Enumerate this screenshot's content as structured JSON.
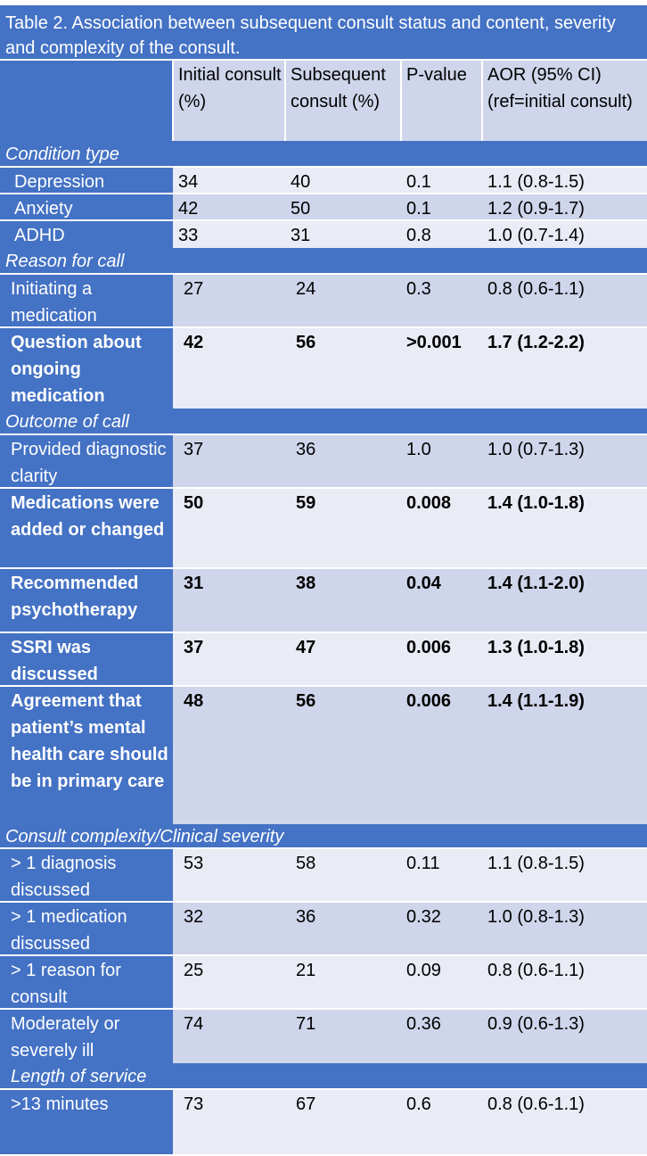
{
  "title": "Table 2.  Association between subsequent consult status and content, severity and complexity of the consult.",
  "header": {
    "c0": "",
    "c1": "Initial consult (%)",
    "c2": "Subsequent consult (%)",
    "c3": "P-value",
    "c4": "AOR (95% CI) (ref=initial consult)"
  },
  "sections": {
    "condition_type": "Condition type",
    "reason_for_call": "Reason for call",
    "outcome_of_call": "Outcome of call",
    "complexity": "Consult complexity/Clinical severity",
    "length_of_service": "Length of service"
  },
  "rows": {
    "depression": {
      "label": "Depression",
      "initial": "34",
      "subsequent": "40",
      "p": "0.1",
      "aor": "1.1 (0.8-1.5)"
    },
    "anxiety": {
      "label": "Anxiety",
      "initial": "42",
      "subsequent": "50",
      "p": "0.1",
      "aor": "1.2 (0.9-1.7)"
    },
    "adhd": {
      "label": "ADHD",
      "initial": "33",
      "subsequent": "31",
      "p": "0.8",
      "aor": "1.0 (0.7-1.4)"
    },
    "initiating": {
      "label": "Initiating a medication",
      "initial": "27",
      "subsequent": "24",
      "p": "0.3",
      "aor": "0.8 (0.6-1.1)"
    },
    "ongoing": {
      "label": "Question about ongoing medication",
      "initial": "42",
      "subsequent": "56",
      "p": ">0.001",
      "aor": "1.7 (1.2-2.2)"
    },
    "diagnostic": {
      "label": "Provided diagnostic clarity",
      "initial": "37",
      "subsequent": "36",
      "p": "1.0",
      "aor": "1.0 (0.7-1.3)"
    },
    "medications": {
      "label": "Medications were added or changed",
      "initial": "50",
      "subsequent": "59",
      "p": "0.008",
      "aor": "1.4 (1.0-1.8)"
    },
    "psychotherapy": {
      "label": "Recommended psychotherapy",
      "initial": "31",
      "subsequent": "38",
      "p": "0.04",
      "aor": "1.4 (1.1-2.0)"
    },
    "ssri": {
      "label": "SSRI was discussed",
      "initial": "37",
      "subsequent": "47",
      "p": "0.006",
      "aor": "1.3 (1.0-1.8)"
    },
    "agreement": {
      "label": "Agreement that patient’s mental health care should be in primary care",
      "initial": "48",
      "subsequent": "56",
      "p": "0.006",
      "aor": "1.4 (1.1-1.9)"
    },
    "diag_gt1": {
      "label": "> 1 diagnosis discussed",
      "initial": "53",
      "subsequent": "58",
      "p": "0.11",
      "aor": "1.1 (0.8-1.5)"
    },
    "med_gt1": {
      "label": "> 1 medication discussed",
      "initial": "32",
      "subsequent": "36",
      "p": "0.32",
      "aor": "1.0 (0.8-1.3)"
    },
    "reason_gt1": {
      "label": "> 1 reason for consult",
      "initial": "25",
      "subsequent": "21",
      "p": "0.09",
      "aor": "0.8 (0.6-1.1)"
    },
    "ill": {
      "label": "Moderately or severely ill",
      "initial": "74",
      "subsequent": "71",
      "p": "0.36",
      "aor": "0.9 (0.6-1.3)"
    },
    "minutes": {
      "label": ">13 minutes",
      "initial": "73",
      "subsequent": "67",
      "p": "0.6",
      "aor": "0.8 (0.6-1.1)"
    }
  }
}
